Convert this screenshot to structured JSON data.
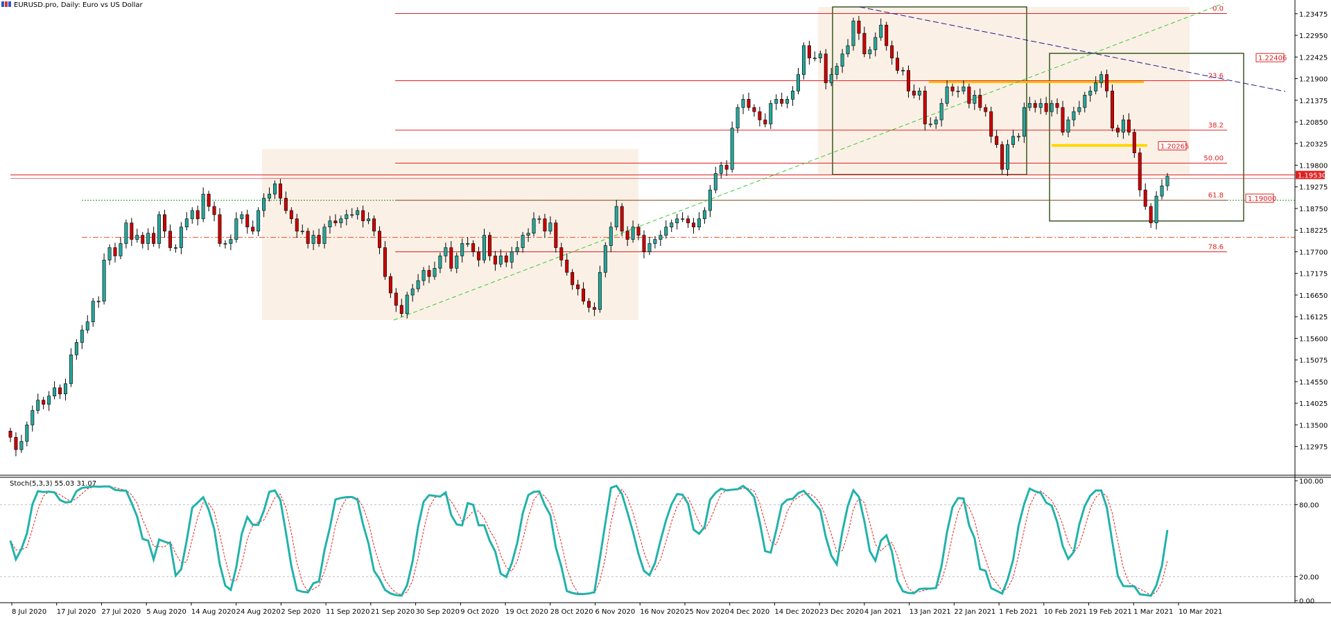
{
  "window_title": "EURUSD.pro, Daily:  Euro vs US Dollar",
  "indicator_label": "Stoch(5,3,3) 55.03 31.07",
  "chart_data": {
    "type": "candlestick",
    "symbol": "EURUSD.pro",
    "timeframe": "Daily",
    "ylim": [
      1.1238,
      1.2364
    ],
    "price_ticks": [
      "1.23475",
      "1.22950",
      "1.22425",
      "1.21900",
      "1.21375",
      "1.20850",
      "1.20325",
      "1.19800",
      "1.19275",
      "1.18750",
      "1.18225",
      "1.17700",
      "1.17175",
      "1.16650",
      "1.16125",
      "1.15600",
      "1.15075",
      "1.14550",
      "1.14025",
      "1.13500",
      "1.12975"
    ],
    "date_ticks": [
      "8 Jul 2020",
      "17 Jul 2020",
      "27 Jul 2020",
      "5 Aug 2020",
      "14 Aug 2020",
      "24 Aug 2020",
      "2 Sep 2020",
      "11 Sep 2020",
      "21 Sep 2020",
      "30 Sep 2020",
      "9 Oct 2020",
      "19 Oct 2020",
      "28 Oct 2020",
      "6 Nov 2020",
      "16 Nov 2020",
      "25 Nov 2020",
      "4 Dec 2020",
      "14 Dec 2020",
      "23 Dec 2020",
      "4 Jan 2021",
      "13 Jan 2021",
      "22 Jan 2021",
      "1 Feb 2021",
      "10 Feb 2021",
      "19 Feb 2021",
      "1 Mar 2021",
      "10 Mar 2021"
    ],
    "stoch_ticks": [
      "100.00",
      "80.00",
      "20.00",
      "0.00"
    ],
    "bull_color": "#26a69a",
    "bear_color": "#cc0000",
    "closes": [
      1.132,
      1.129,
      1.131,
      1.135,
      1.1385,
      1.141,
      1.14,
      1.142,
      1.144,
      1.1425,
      1.145,
      1.152,
      1.155,
      1.158,
      1.16,
      1.165,
      1.165,
      1.175,
      1.178,
      1.176,
      1.179,
      1.184,
      1.18,
      1.181,
      1.179,
      1.1815,
      1.179,
      1.186,
      1.182,
      1.178,
      1.178,
      1.183,
      1.185,
      1.187,
      1.185,
      1.191,
      1.188,
      1.186,
      1.179,
      1.179,
      1.18,
      1.185,
      1.186,
      1.183,
      1.182,
      1.187,
      1.19,
      1.191,
      1.1935,
      1.19,
      1.187,
      1.185,
      1.182,
      1.182,
      1.179,
      1.181,
      1.179,
      1.183,
      1.1845,
      1.184,
      1.185,
      1.186,
      1.186,
      1.187,
      1.1845,
      1.185,
      1.182,
      1.178,
      1.171,
      1.167,
      1.164,
      1.162,
      1.1665,
      1.168,
      1.17,
      1.1725,
      1.171,
      1.173,
      1.176,
      1.178,
      1.173,
      1.176,
      1.179,
      1.179,
      1.177,
      1.175,
      1.181,
      1.176,
      1.174,
      1.176,
      1.1745,
      1.177,
      1.178,
      1.181,
      1.1815,
      1.185,
      1.185,
      1.182,
      1.184,
      1.178,
      1.175,
      1.172,
      1.169,
      1.168,
      1.165,
      1.1635,
      1.163,
      1.172,
      1.1785,
      1.183,
      1.188,
      1.182,
      1.18,
      1.183,
      1.181,
      1.177,
      1.179,
      1.18,
      1.181,
      1.183,
      1.184,
      1.185,
      1.185,
      1.184,
      1.183,
      1.185,
      1.187,
      1.192,
      1.196,
      1.198,
      1.197,
      1.207,
      1.212,
      1.214,
      1.212,
      1.211,
      1.209,
      1.208,
      1.213,
      1.214,
      1.213,
      1.214,
      1.216,
      1.22,
      1.227,
      1.224,
      1.224,
      1.225,
      1.218,
      1.22,
      1.222,
      1.225,
      1.227,
      1.233,
      1.23,
      1.225,
      1.226,
      1.229,
      1.232,
      1.227,
      1.224,
      1.221,
      1.221,
      1.216,
      1.215,
      1.216,
      1.208,
      1.208,
      1.209,
      1.213,
      1.217,
      1.216,
      1.216,
      1.217,
      1.213,
      1.215,
      1.212,
      1.211,
      1.205,
      1.203,
      1.197,
      1.203,
      1.205,
      1.205,
      1.212,
      1.213,
      1.212,
      1.213,
      1.211,
      1.213,
      1.212,
      1.206,
      1.209,
      1.211,
      1.212,
      1.215,
      1.216,
      1.218,
      1.22,
      1.216,
      1.207,
      1.206,
      1.209,
      1.206,
      1.201,
      1.192,
      1.188,
      1.184,
      1.1905,
      1.193,
      1.1953
    ],
    "stoch_levels": [
      80,
      20
    ]
  }
}
